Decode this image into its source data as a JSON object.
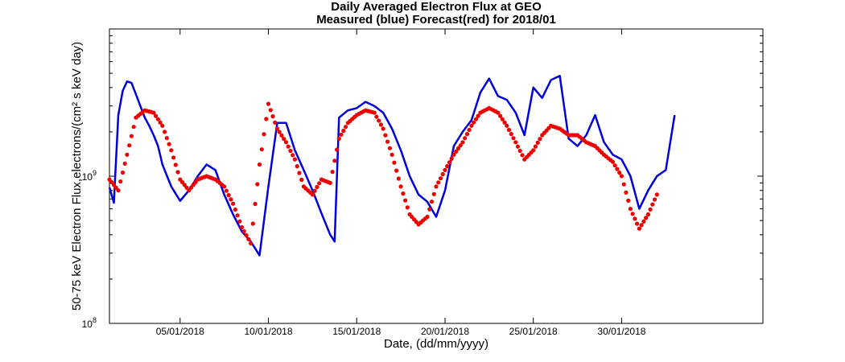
{
  "chart_data": {
    "type": "line",
    "title": "Daily Averaged Electron Flux at GEO",
    "subtitle": "Measured (blue) Forecast(red) for 2018/01",
    "xlabel": "Date, (dd/mm/yyyy)",
    "ylabel": "50-75 keV Electron Flux,electrons/(cm² s keV day)",
    "x_unit": "date",
    "xlim": [
      "2018-01-01",
      "2018-02-07"
    ],
    "ylim": [
      100000000,
      10000000000
    ],
    "y_scale": "log",
    "grid": false,
    "legend": "none",
    "x_ticks": [
      {
        "value": "2018-01-05",
        "label": "05/01/2018"
      },
      {
        "value": "2018-01-10",
        "label": "10/01/2018"
      },
      {
        "value": "2018-01-15",
        "label": "15/01/2018"
      },
      {
        "value": "2018-01-20",
        "label": "20/01/2018"
      },
      {
        "value": "2018-01-25",
        "label": "25/01/2018"
      },
      {
        "value": "2018-01-30",
        "label": "30/01/2018"
      }
    ],
    "y_ticks": [
      {
        "value": 100000000,
        "base": "10",
        "exp": "8"
      },
      {
        "value": 1000000000,
        "base": "10",
        "exp": "9"
      }
    ],
    "series": [
      {
        "color": "#0000dd",
        "style": "line",
        "x": [
          "2018-01-01T00:00",
          "2018-01-01T06:00",
          "2018-01-01T12:00",
          "2018-01-01T18:00",
          "2018-01-02T00:00",
          "2018-01-02T06:00",
          "2018-01-02T12:00",
          "2018-01-03T00:00",
          "2018-01-03T06:00",
          "2018-01-03T12:00",
          "2018-01-03T18:00",
          "2018-01-04T00:00",
          "2018-01-04T12:00",
          "2018-01-05T00:00",
          "2018-01-05T12:00",
          "2018-01-06T00:00",
          "2018-01-06T12:00",
          "2018-01-07T00:00",
          "2018-01-07T12:00",
          "2018-01-08T00:00",
          "2018-01-08T12:00",
          "2018-01-09T00:00",
          "2018-01-09T12:00",
          "2018-01-10T00:00",
          "2018-01-10T12:00",
          "2018-01-11T00:00",
          "2018-01-11T12:00",
          "2018-01-12T00:00",
          "2018-01-12T12:00",
          "2018-01-13T00:00",
          "2018-01-13T12:00",
          "2018-01-13T18:00",
          "2018-01-14T00:00",
          "2018-01-14T12:00",
          "2018-01-15T00:00",
          "2018-01-15T12:00",
          "2018-01-16T00:00",
          "2018-01-16T12:00",
          "2018-01-17T00:00",
          "2018-01-17T12:00",
          "2018-01-18T00:00",
          "2018-01-18T12:00",
          "2018-01-19T00:00",
          "2018-01-19T12:00",
          "2018-01-20T00:00",
          "2018-01-20T12:00",
          "2018-01-21T00:00",
          "2018-01-21T12:00",
          "2018-01-22T00:00",
          "2018-01-22T12:00",
          "2018-01-23T00:00",
          "2018-01-23T12:00",
          "2018-01-24T00:00",
          "2018-01-24T12:00",
          "2018-01-25T00:00",
          "2018-01-25T12:00",
          "2018-01-26T00:00",
          "2018-01-26T12:00",
          "2018-01-27T00:00",
          "2018-01-27T12:00",
          "2018-01-28T00:00",
          "2018-01-28T12:00",
          "2018-01-29T00:00",
          "2018-01-29T12:00",
          "2018-01-30T00:00",
          "2018-01-30T12:00",
          "2018-01-31T00:00",
          "2018-01-31T12:00",
          "2018-02-01T00:00",
          "2018-02-01T12:00",
          "2018-02-02T00:00"
        ],
        "y": [
          840000000.0,
          660000000.0,
          2600000000.0,
          3800000000.0,
          4400000000.0,
          4300000000.0,
          3600000000.0,
          2500000000.0,
          2200000000.0,
          1900000000.0,
          1600000000.0,
          1200000000.0,
          850000000.0,
          680000000.0,
          800000000.0,
          1000000000.0,
          1200000000.0,
          1100000000.0,
          750000000.0,
          550000000.0,
          420000000.0,
          360000000.0,
          290000000.0,
          850000000.0,
          2300000000.0,
          2300000000.0,
          1500000000.0,
          1100000000.0,
          800000000.0,
          560000000.0,
          400000000.0,
          360000000.0,
          2500000000.0,
          2800000000.0,
          2900000000.0,
          3200000000.0,
          3000000000.0,
          2700000000.0,
          2100000000.0,
          1500000000.0,
          1000000000.0,
          750000000.0,
          670000000.0,
          530000000.0,
          800000000.0,
          1600000000.0,
          2000000000.0,
          2400000000.0,
          3700000000.0,
          4600000000.0,
          3500000000.0,
          3300000000.0,
          2700000000.0,
          1900000000.0,
          4000000000.0,
          3400000000.0,
          4500000000.0,
          4800000000.0,
          1800000000.0,
          1600000000.0,
          1900000000.0,
          2600000000.0,
          1700000000.0,
          1400000000.0,
          1300000000.0,
          1000000000.0,
          600000000.0,
          800000000.0,
          1000000000.0,
          1100000000.0,
          2600000000.0
        ]
      },
      {
        "color": "#ee0000",
        "style": "markers",
        "x": [
          "2018-01-01T00:00",
          "2018-01-01T12:00",
          "2018-01-02T00:00",
          "2018-01-02T12:00",
          "2018-01-03T00:00",
          "2018-01-03T12:00",
          "2018-01-04T00:00",
          "2018-01-04T12:00",
          "2018-01-05T00:00",
          "2018-01-05T12:00",
          "2018-01-06T00:00",
          "2018-01-06T12:00",
          "2018-01-07T00:00",
          "2018-01-07T12:00",
          "2018-01-08T00:00",
          "2018-01-08T12:00",
          "2018-01-09T00:00",
          "2018-01-09T12:00",
          "2018-01-10T00:00",
          "2018-01-10T12:00",
          "2018-01-11T00:00",
          "2018-01-11T12:00",
          "2018-01-12T00:00",
          "2018-01-12T12:00",
          "2018-01-13T00:00",
          "2018-01-13T12:00",
          "2018-01-14T00:00",
          "2018-01-14T12:00",
          "2018-01-15T00:00",
          "2018-01-15T12:00",
          "2018-01-16T00:00",
          "2018-01-16T12:00",
          "2018-01-17T00:00",
          "2018-01-17T12:00",
          "2018-01-18T00:00",
          "2018-01-18T12:00",
          "2018-01-19T00:00",
          "2018-01-19T12:00",
          "2018-01-20T00:00",
          "2018-01-20T12:00",
          "2018-01-21T00:00",
          "2018-01-21T12:00",
          "2018-01-22T00:00",
          "2018-01-22T12:00",
          "2018-01-23T00:00",
          "2018-01-23T12:00",
          "2018-01-24T00:00",
          "2018-01-24T12:00",
          "2018-01-25T00:00",
          "2018-01-25T12:00",
          "2018-01-26T00:00",
          "2018-01-26T12:00",
          "2018-01-27T00:00",
          "2018-01-27T12:00",
          "2018-01-28T00:00",
          "2018-01-28T12:00",
          "2018-01-29T00:00",
          "2018-01-29T12:00",
          "2018-01-30T00:00",
          "2018-01-30T12:00",
          "2018-01-31T00:00",
          "2018-01-31T12:00",
          "2018-02-01T00:00",
          "2018-02-01T12:00",
          "2018-02-02T00:00"
        ],
        "y": [
          950000000.0,
          800000000.0,
          1400000000.0,
          2500000000.0,
          2800000000.0,
          2700000000.0,
          2200000000.0,
          1500000000.0,
          950000000.0,
          800000000.0,
          950000000.0,
          1000000000.0,
          950000000.0,
          850000000.0,
          650000000.0,
          450000000.0,
          350000000.0,
          1200000000.0,
          3100000000.0,
          2100000000.0,
          1700000000.0,
          1300000000.0,
          850000000.0,
          750000000.0,
          950000000.0,
          900000000.0,
          1800000000.0,
          2300000000.0,
          2600000000.0,
          2800000000.0,
          2700000000.0,
          2100000000.0,
          1400000000.0,
          850000000.0,
          550000000.0,
          470000000.0,
          530000000.0,
          850000000.0,
          1100000000.0,
          1400000000.0,
          1700000000.0,
          2200000000.0,
          2700000000.0,
          2900000000.0,
          2700000000.0,
          2200000000.0,
          1700000000.0,
          1300000000.0,
          1500000000.0,
          1900000000.0,
          2200000000.0,
          2100000000.0,
          1900000000.0,
          1900000000.0,
          1700000000.0,
          1600000000.0,
          1400000000.0,
          1250000000.0,
          1000000000.0,
          600000000.0,
          440000000.0,
          550000000.0,
          750000000.0,
          null,
          null
        ]
      }
    ]
  }
}
